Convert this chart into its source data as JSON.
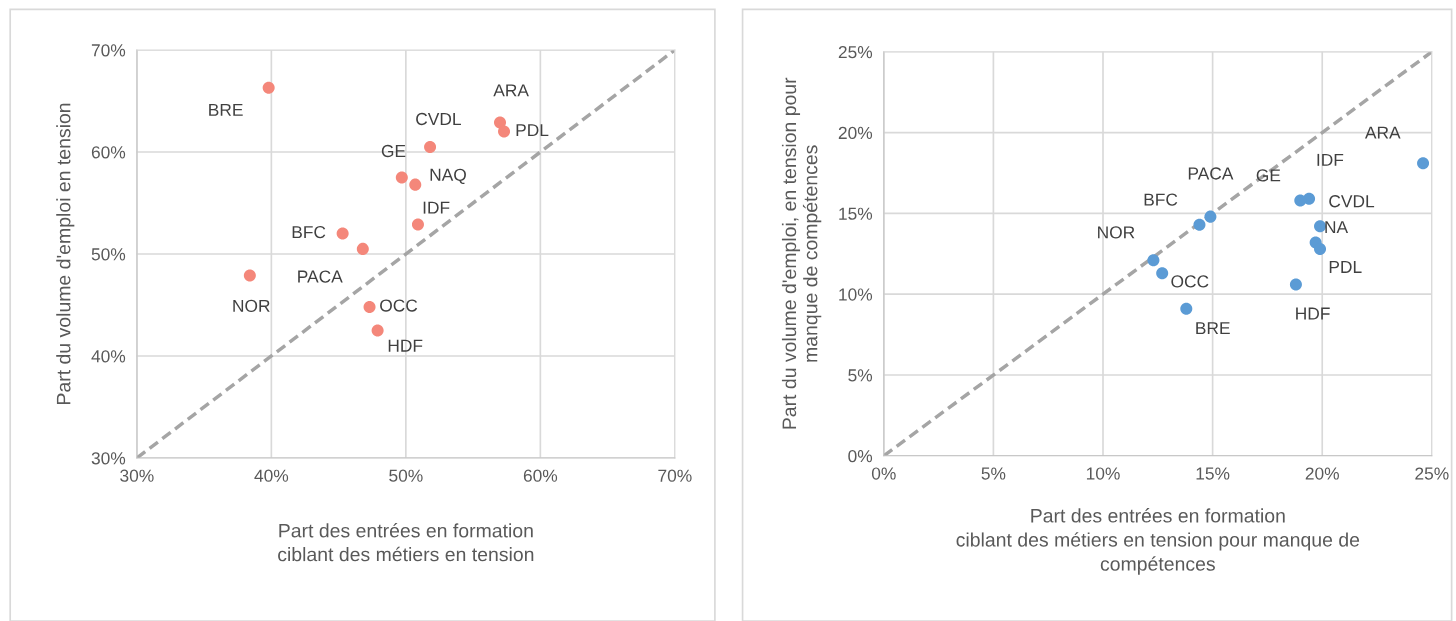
{
  "chart_data": [
    {
      "type": "scatter",
      "xlabel": "Part des entrées en formation\nciblant des métiers en tension",
      "ylabel": "Part du volume d'emploi en tension",
      "xlim": [
        30,
        70
      ],
      "ylim": [
        30,
        70
      ],
      "xticks": [
        {
          "value": 30,
          "label": "30%"
        },
        {
          "value": 40,
          "label": "40%"
        },
        {
          "value": 50,
          "label": "50%"
        },
        {
          "value": 60,
          "label": "60%"
        },
        {
          "value": 70,
          "label": "70%"
        }
      ],
      "yticks": [
        {
          "value": 30,
          "label": "30%"
        },
        {
          "value": 40,
          "label": "40%"
        },
        {
          "value": 50,
          "label": "50%"
        },
        {
          "value": 60,
          "label": "60%"
        },
        {
          "value": 70,
          "label": "70%"
        }
      ],
      "grid": true,
      "marker": "circle",
      "series": [
        {
          "color": "#f4877a",
          "x": [
            39.8,
            57.0,
            57.3,
            51.8,
            49.7,
            50.7,
            50.9,
            45.3,
            46.8,
            38.4,
            47.3,
            47.9
          ],
          "values": [
            66.3,
            62.9,
            62.0,
            60.5,
            57.5,
            56.8,
            52.9,
            52.0,
            50.5,
            47.9,
            44.8,
            42.5
          ]
        },
        {
          "type": "line",
          "color": "#a5a5a5",
          "line_style": "dashed",
          "marker": "none",
          "x": [
            30,
            70
          ],
          "values": [
            30,
            70
          ]
        }
      ],
      "annotations": [
        {
          "text": "BRE",
          "x": 39.8,
          "y": 66.3
        },
        {
          "text": "ARA",
          "x": 57.0,
          "y": 62.9
        },
        {
          "text": "PDL",
          "x": 57.3,
          "y": 62.0
        },
        {
          "text": "CVDL",
          "x": 51.8,
          "y": 60.5
        },
        {
          "text": "GE",
          "x": 49.7,
          "y": 57.5
        },
        {
          "text": "NAQ",
          "x": 50.7,
          "y": 56.8
        },
        {
          "text": "IDF",
          "x": 50.9,
          "y": 52.9
        },
        {
          "text": "BFC",
          "x": 45.3,
          "y": 52.0
        },
        {
          "text": "PACA",
          "x": 46.8,
          "y": 50.5
        },
        {
          "text": "NOR",
          "x": 38.4,
          "y": 47.9
        },
        {
          "text": "OCC",
          "x": 47.3,
          "y": 44.8
        },
        {
          "text": "HDF",
          "x": 47.9,
          "y": 42.5
        }
      ]
    },
    {
      "type": "scatter",
      "xlabel": "Part des entrées en formation\nciblant des métiers en tension pour manque de\ncompétences",
      "ylabel": "Part du volume d'emploi, en tension pour\nmanque de compétences",
      "xlim": [
        0,
        25
      ],
      "ylim": [
        0,
        25
      ],
      "xticks": [
        {
          "value": 0,
          "label": "0%"
        },
        {
          "value": 5,
          "label": "5%"
        },
        {
          "value": 10,
          "label": "10%"
        },
        {
          "value": 15,
          "label": "15%"
        },
        {
          "value": 20,
          "label": "20%"
        },
        {
          "value": 25,
          "label": "25%"
        }
      ],
      "yticks": [
        {
          "value": 0,
          "label": "0%"
        },
        {
          "value": 5,
          "label": "5%"
        },
        {
          "value": 10,
          "label": "10%"
        },
        {
          "value": 15,
          "label": "15%"
        },
        {
          "value": 20,
          "label": "20%"
        },
        {
          "value": 25,
          "label": "25%"
        }
      ],
      "grid": true,
      "marker": "circle",
      "series": [
        {
          "color": "#5b9bd5",
          "x": [
            24.6,
            19.4,
            19.0,
            19.9,
            19.7,
            19.9,
            18.8,
            14.9,
            14.4,
            12.3,
            12.7,
            13.8
          ],
          "values": [
            18.1,
            15.9,
            15.8,
            14.2,
            13.2,
            12.8,
            10.6,
            14.8,
            14.3,
            12.1,
            11.3,
            9.1
          ]
        },
        {
          "type": "line",
          "color": "#a5a5a5",
          "line_style": "dashed",
          "marker": "none",
          "x": [
            0,
            25
          ],
          "values": [
            0,
            25
          ]
        }
      ],
      "annotations": [
        {
          "text": "ARA",
          "x": 24.6,
          "y": 18.1
        },
        {
          "text": "IDF",
          "x": 19.4,
          "y": 15.9
        },
        {
          "text": "GE",
          "x": 19.0,
          "y": 15.8
        },
        {
          "text": "CVDL",
          "x": 19.9,
          "y": 14.2
        },
        {
          "text": "NA",
          "x": 19.7,
          "y": 13.2
        },
        {
          "text": "PDL",
          "x": 19.9,
          "y": 12.8
        },
        {
          "text": "HDF",
          "x": 18.8,
          "y": 10.6
        },
        {
          "text": "PACA",
          "x": 14.9,
          "y": 14.8
        },
        {
          "text": "BFC",
          "x": 14.4,
          "y": 14.3
        },
        {
          "text": "NOR",
          "x": 12.3,
          "y": 12.1
        },
        {
          "text": "OCC",
          "x": 12.7,
          "y": 11.3
        },
        {
          "text": "BRE",
          "x": 13.8,
          "y": 9.1
        }
      ]
    }
  ]
}
